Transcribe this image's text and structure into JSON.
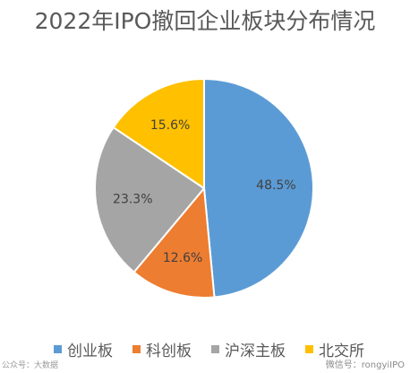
{
  "chart_data": {
    "type": "pie",
    "title": "2022年IPO撤回企业板块分布情况",
    "categories": [
      "创业板",
      "科创板",
      "沪深主板",
      "北交所"
    ],
    "values": [
      48.5,
      12.6,
      23.3,
      15.6
    ],
    "value_labels": [
      "48.5%",
      "12.6%",
      "23.3%",
      "15.6%"
    ],
    "colors": [
      "#5b9bd5",
      "#ed7d31",
      "#a5a5a5",
      "#ffc000"
    ],
    "legend": "bottom"
  },
  "watermark": {
    "left": "公众号：大数据",
    "right": "微信号：rongyiIPO"
  }
}
